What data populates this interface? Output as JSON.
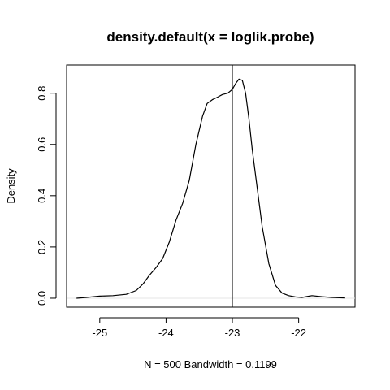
{
  "chart_data": {
    "type": "line",
    "title": "density.default(x = loglik.probe)",
    "xlabel": "N = 500   Bandwidth = 0.1199",
    "ylabel": "Density",
    "xlim": [
      -25.5,
      -21.15
    ],
    "ylim": [
      -0.035,
      0.91
    ],
    "x_ticks": [
      -25,
      -24,
      -23,
      -22
    ],
    "x_tick_labels": [
      "-25",
      "-24",
      "-23",
      "-22"
    ],
    "y_ticks": [
      0.0,
      0.2,
      0.4,
      0.6,
      0.8
    ],
    "y_tick_labels": [
      "0.0",
      "0.2",
      "0.4",
      "0.6",
      "0.8"
    ],
    "vline_x": -23.0,
    "grid": false,
    "series": [
      {
        "x": [
          -25.35,
          -25.2,
          -25.0,
          -24.8,
          -24.6,
          -24.45,
          -24.35,
          -24.25,
          -24.15,
          -24.05,
          -23.95,
          -23.85,
          -23.75,
          -23.65,
          -23.55,
          -23.45,
          -23.38,
          -23.3,
          -23.22,
          -23.15,
          -23.07,
          -23.0,
          -22.95,
          -22.9,
          -22.85,
          -22.8,
          -22.75,
          -22.7,
          -22.62,
          -22.55,
          -22.45,
          -22.35,
          -22.25,
          -22.15,
          -22.05,
          -21.95,
          -21.8,
          -21.65,
          -21.5,
          -21.3
        ],
        "y": [
          0.0,
          0.003,
          0.008,
          0.01,
          0.015,
          0.03,
          0.055,
          0.09,
          0.12,
          0.155,
          0.22,
          0.305,
          0.37,
          0.46,
          0.6,
          0.71,
          0.76,
          0.775,
          0.785,
          0.795,
          0.8,
          0.815,
          0.838,
          0.855,
          0.85,
          0.8,
          0.7,
          0.58,
          0.42,
          0.28,
          0.135,
          0.05,
          0.02,
          0.01,
          0.005,
          0.003,
          0.01,
          0.006,
          0.003,
          0.001
        ]
      }
    ]
  }
}
